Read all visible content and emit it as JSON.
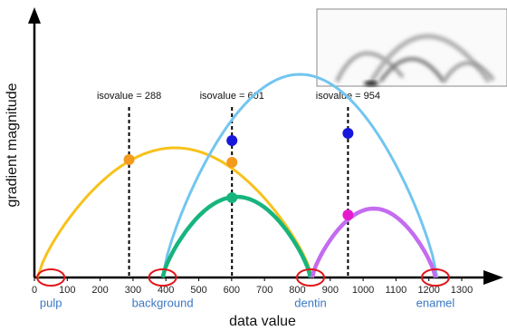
{
  "chart_data": {
    "type": "arc",
    "x_label": "data value",
    "y_label": "gradient magnitude",
    "xlim": [
      0,
      1300
    ],
    "xticks": [
      0,
      100,
      200,
      300,
      400,
      500,
      600,
      700,
      800,
      900,
      1000,
      1100,
      1200,
      1300
    ],
    "ylim": [
      0,
      290
    ],
    "arcs": [
      {
        "color": "#f7c21b",
        "start": 10,
        "end": 845,
        "peak": 143
      },
      {
        "color": "#72c5f0",
        "start": 390,
        "end": 1225,
        "peak": 224
      },
      {
        "color": "#17b57d",
        "start": 390,
        "end": 840,
        "peak": 89
      },
      {
        "color": "#c46cf0",
        "start": 845,
        "end": 1220,
        "peak": 76
      }
    ],
    "isovalues": [
      {
        "label": "isovalue = 288",
        "value": 288
      },
      {
        "label": "isovalue = 601",
        "value": 601
      },
      {
        "label": "isovalue = 954",
        "value": 954
      }
    ],
    "points": [
      {
        "x": 288,
        "y": 130,
        "color": "#f49a1c"
      },
      {
        "x": 601,
        "y": 127,
        "color": "#f49a1c"
      },
      {
        "x": 601,
        "y": 151,
        "color": "#1616dc"
      },
      {
        "x": 601,
        "y": 88,
        "color": "#17b57d"
      },
      {
        "x": 954,
        "y": 159,
        "color": "#1616dc"
      },
      {
        "x": 954,
        "y": 69,
        "color": "#e51ccd"
      }
    ],
    "materials": [
      {
        "name": "pulp",
        "value": 50
      },
      {
        "name": "background",
        "value": 390
      },
      {
        "name": "dentin",
        "value": 840
      },
      {
        "name": "enamel",
        "value": 1220
      }
    ]
  }
}
